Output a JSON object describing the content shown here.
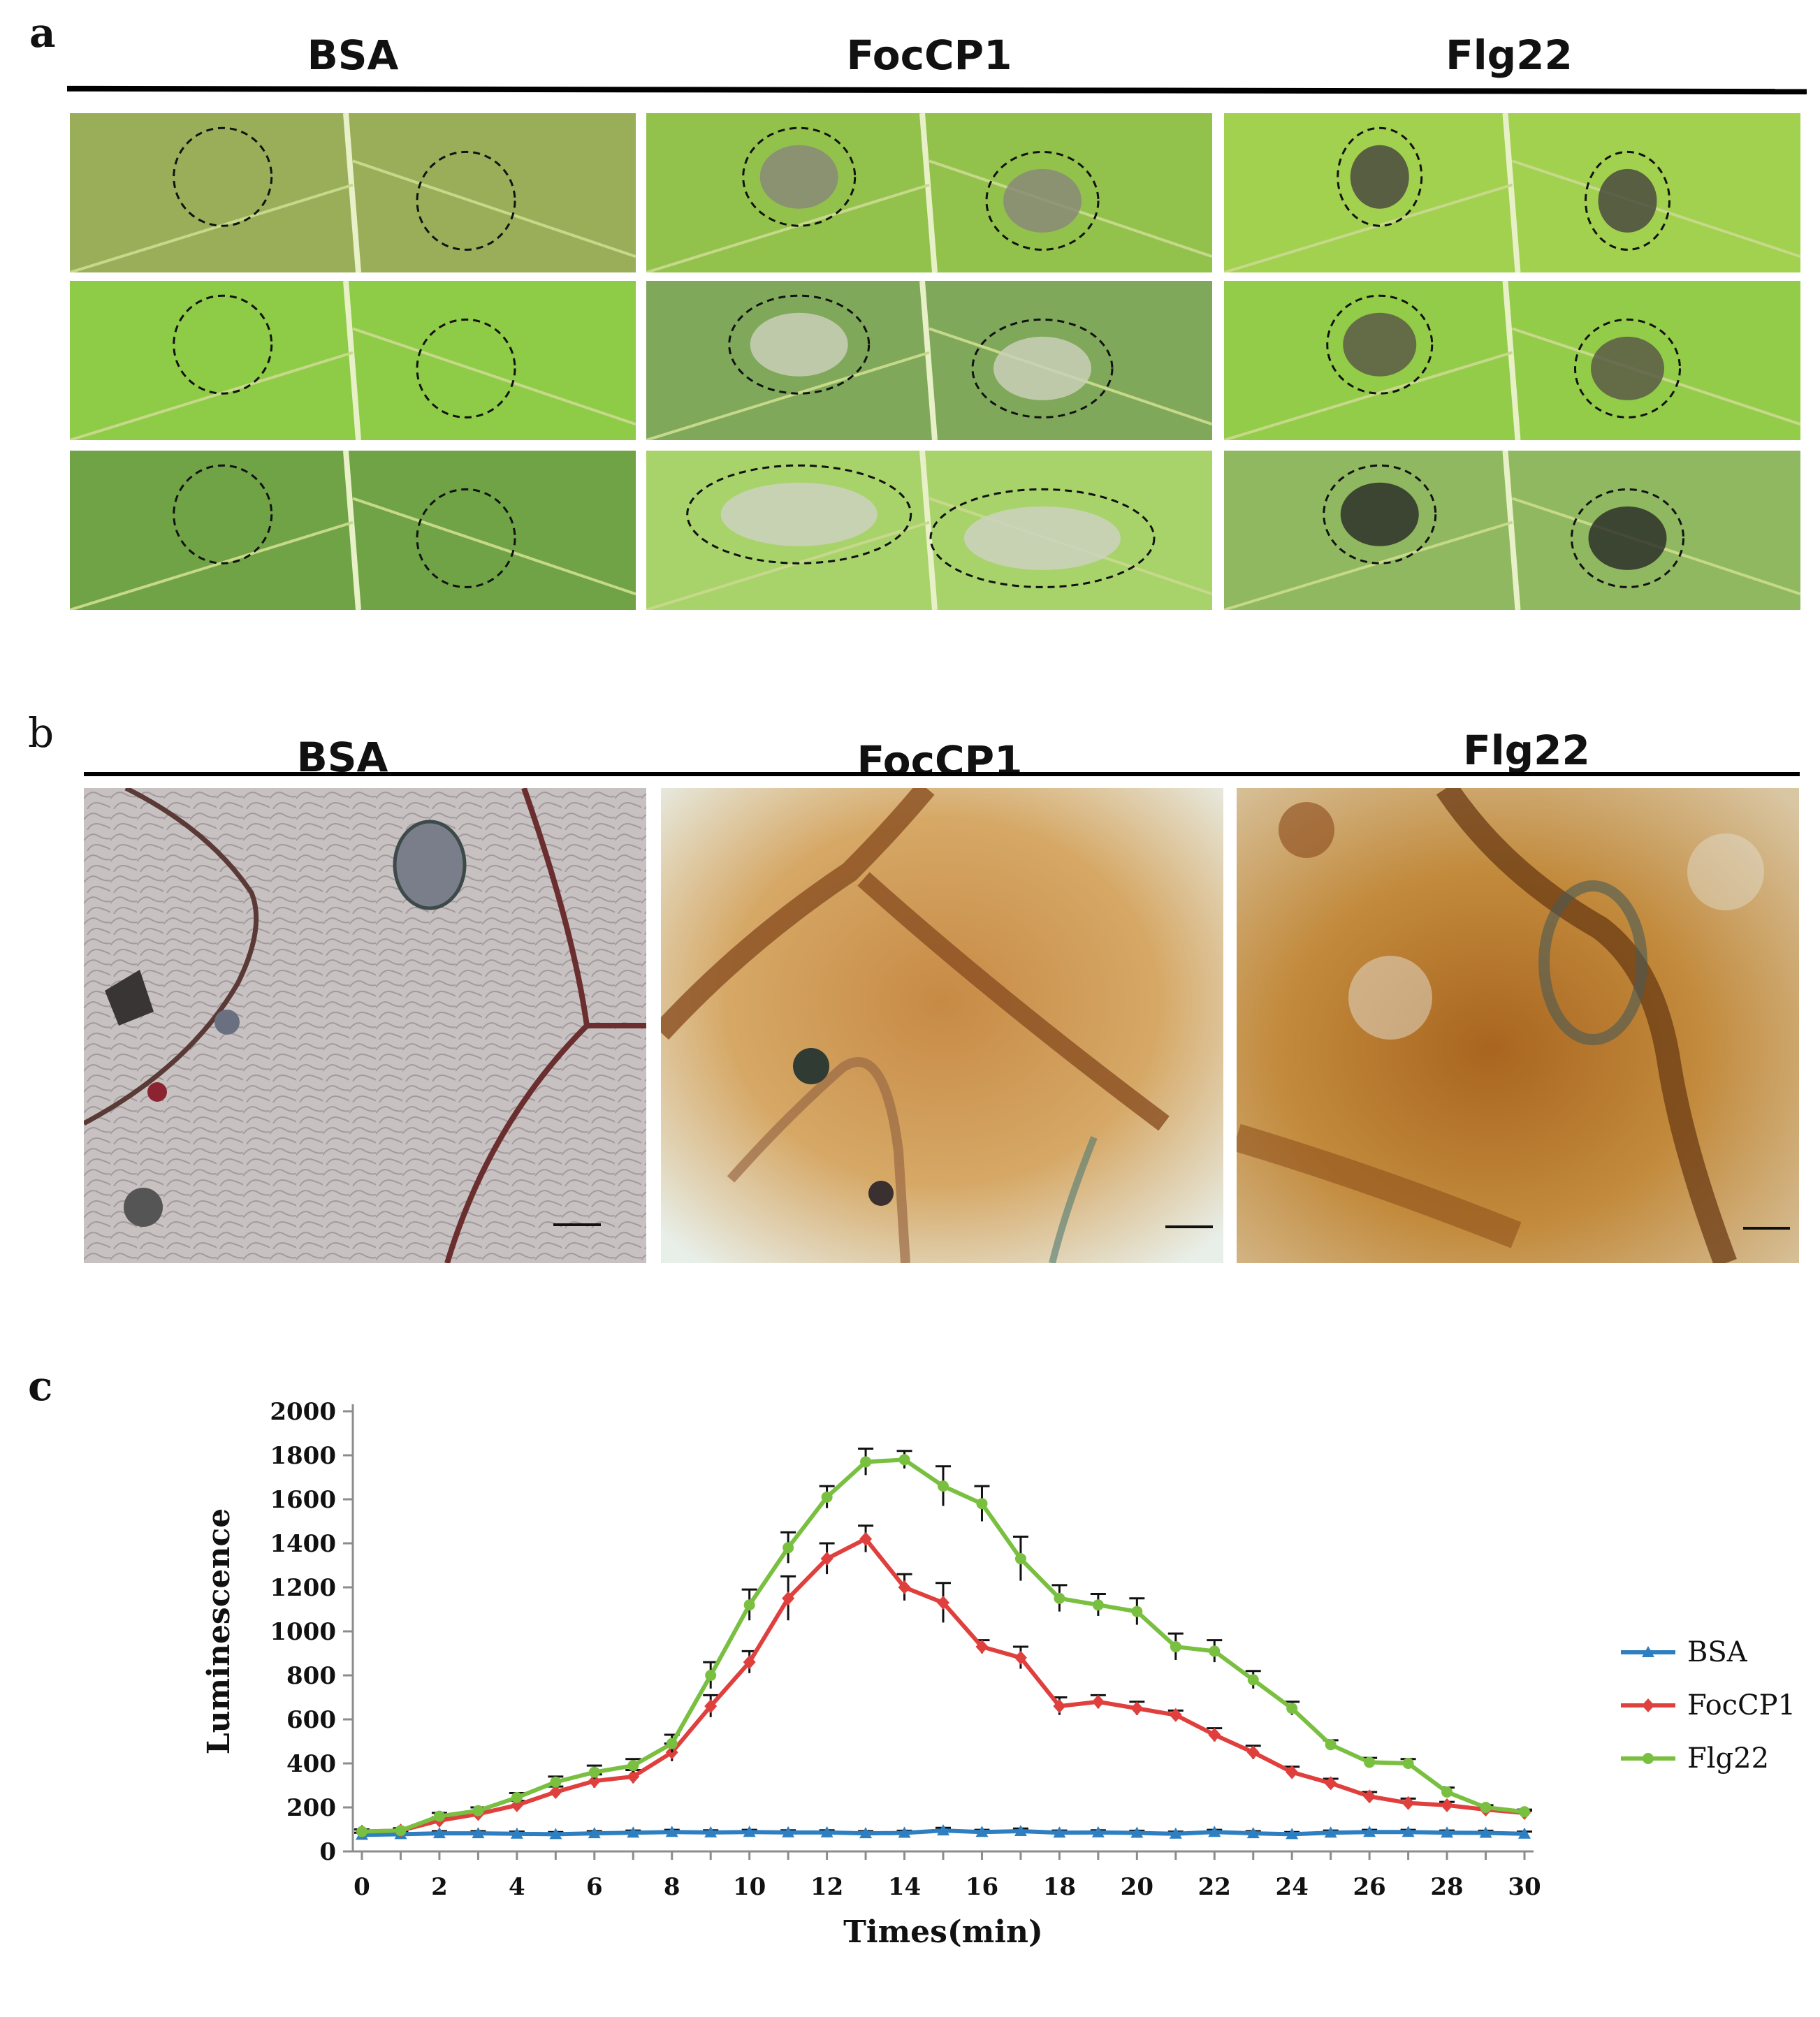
{
  "figure": {
    "panel_a": {
      "letter": "a",
      "columns": [
        "BSA",
        "FocCP1",
        "Flg22"
      ]
    },
    "panel_b": {
      "letter": "b",
      "columns": [
        "BSA",
        "FocCP1",
        "Flg22"
      ]
    },
    "panel_c": {
      "letter": "c"
    }
  },
  "colors": {
    "bsa": "#2e7fc1",
    "foccp1": "#e0403d",
    "flg22": "#79bf40",
    "leaf_green": "#8ec63f",
    "dab_brown": "#b8742a"
  },
  "chart_data": {
    "type": "line",
    "xlabel": "Times(min)",
    "ylabel": "Luminescence",
    "xlim": [
      0,
      30
    ],
    "ylim": [
      0,
      2000
    ],
    "xticks": [
      0,
      2,
      4,
      6,
      8,
      10,
      12,
      14,
      16,
      18,
      20,
      22,
      24,
      26,
      28,
      30
    ],
    "yticks": [
      0,
      200,
      400,
      600,
      800,
      1000,
      1200,
      1400,
      1600,
      1800,
      2000
    ],
    "legend_position": "right",
    "grid": false,
    "x": [
      0,
      1,
      2,
      3,
      4,
      5,
      6,
      7,
      8,
      9,
      10,
      11,
      12,
      13,
      14,
      15,
      16,
      17,
      18,
      19,
      20,
      21,
      22,
      23,
      24,
      25,
      26,
      27,
      28,
      29,
      30
    ],
    "series": [
      {
        "name": "BSA",
        "marker": "triangle",
        "values": [
          75,
          78,
          82,
          82,
          80,
          78,
          82,
          85,
          88,
          86,
          88,
          86,
          86,
          82,
          84,
          95,
          88,
          92,
          85,
          86,
          84,
          80,
          88,
          82,
          78,
          85,
          88,
          88,
          85,
          84,
          80
        ],
        "errors": [
          10,
          10,
          10,
          10,
          10,
          10,
          10,
          10,
          10,
          10,
          10,
          10,
          10,
          10,
          10,
          12,
          10,
          12,
          10,
          10,
          10,
          10,
          10,
          10,
          10,
          10,
          10,
          10,
          10,
          10,
          10
        ]
      },
      {
        "name": "FocCP1",
        "marker": "diamond",
        "values": [
          90,
          95,
          140,
          170,
          210,
          270,
          320,
          340,
          450,
          660,
          860,
          1150,
          1330,
          1420,
          1200,
          1130,
          930,
          880,
          660,
          680,
          650,
          620,
          530,
          450,
          360,
          310,
          250,
          220,
          210,
          190,
          175
        ],
        "errors": [
          10,
          10,
          15,
          15,
          20,
          25,
          30,
          30,
          40,
          50,
          50,
          100,
          70,
          60,
          60,
          90,
          30,
          50,
          40,
          30,
          30,
          20,
          30,
          30,
          25,
          20,
          20,
          20,
          15,
          10,
          10
        ]
      },
      {
        "name": "Flg22",
        "marker": "circle",
        "values": [
          90,
          95,
          160,
          185,
          245,
          315,
          360,
          390,
          490,
          800,
          1120,
          1380,
          1610,
          1770,
          1780,
          1660,
          1580,
          1330,
          1150,
          1120,
          1090,
          930,
          910,
          780,
          650,
          485,
          405,
          400,
          270,
          200,
          180
        ],
        "errors": [
          10,
          10,
          15,
          15,
          20,
          25,
          30,
          30,
          40,
          60,
          70,
          70,
          50,
          60,
          40,
          90,
          80,
          100,
          60,
          50,
          60,
          60,
          50,
          40,
          30,
          20,
          20,
          20,
          20,
          10,
          10
        ]
      }
    ]
  }
}
